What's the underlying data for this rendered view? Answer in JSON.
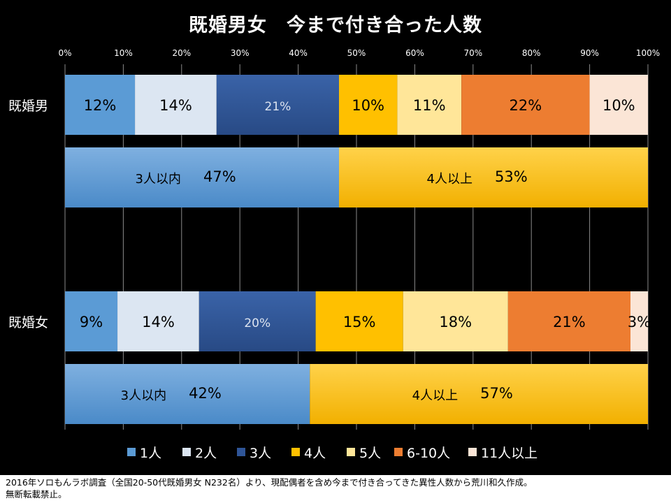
{
  "chart_data": {
    "type": "bar",
    "stacked": "100%",
    "orientation": "horizontal",
    "title": "既婚男女　今まで付き合った人数",
    "xlim": [
      0,
      100
    ],
    "x_ticks": [
      "0%",
      "10%",
      "20%",
      "30%",
      "40%",
      "50%",
      "60%",
      "70%",
      "80%",
      "90%",
      "100%"
    ],
    "grid": true,
    "legend_position": "bottom",
    "groups": [
      {
        "label": "既婚男",
        "detail": [
          12,
          14,
          21,
          10,
          11,
          22,
          10
        ],
        "detail_labels": [
          "12%",
          "14%",
          "21%",
          "10%",
          "11%",
          "22%",
          "10%"
        ],
        "summary": [
          {
            "label": "3人以内",
            "value": 47,
            "value_label": "47%"
          },
          {
            "label": "4人以上",
            "value": 53,
            "value_label": "53%"
          }
        ]
      },
      {
        "label": "既婚女",
        "detail": [
          9,
          14,
          20,
          15,
          18,
          21,
          3
        ],
        "detail_labels": [
          "9%",
          "14%",
          "20%",
          "15%",
          "18%",
          "21%",
          "3%"
        ],
        "summary": [
          {
            "label": "3人以内",
            "value": 42,
            "value_label": "42%"
          },
          {
            "label": "4人以上",
            "value": 57,
            "value_label": "57%"
          }
        ]
      }
    ],
    "series": [
      {
        "name": "1人",
        "color": "#5B9BD5",
        "label_color": "#000000"
      },
      {
        "name": "2人",
        "color": "#DCE6F2",
        "label_color": "#000000"
      },
      {
        "name": "3人",
        "color": "#2F5597",
        "label_color": "#DDE4F0"
      },
      {
        "name": "4人",
        "color": "#FFC000",
        "label_color": "#000000"
      },
      {
        "name": "5人",
        "color": "#FFE699",
        "label_color": "#000000"
      },
      {
        "name": "6-10人",
        "color": "#ED7D31",
        "label_color": "#000000"
      },
      {
        "name": "11人以上",
        "color": "#FBE5D6",
        "label_color": "#000000"
      }
    ]
  },
  "footer": {
    "line1": "2016年ソロもんラボ調査（全国20-50代既婚男女 N232名）より、現配偶者を含め今まで付き合ってきた異性人数から荒川和久作成。",
    "line2": "無断転載禁止。"
  }
}
